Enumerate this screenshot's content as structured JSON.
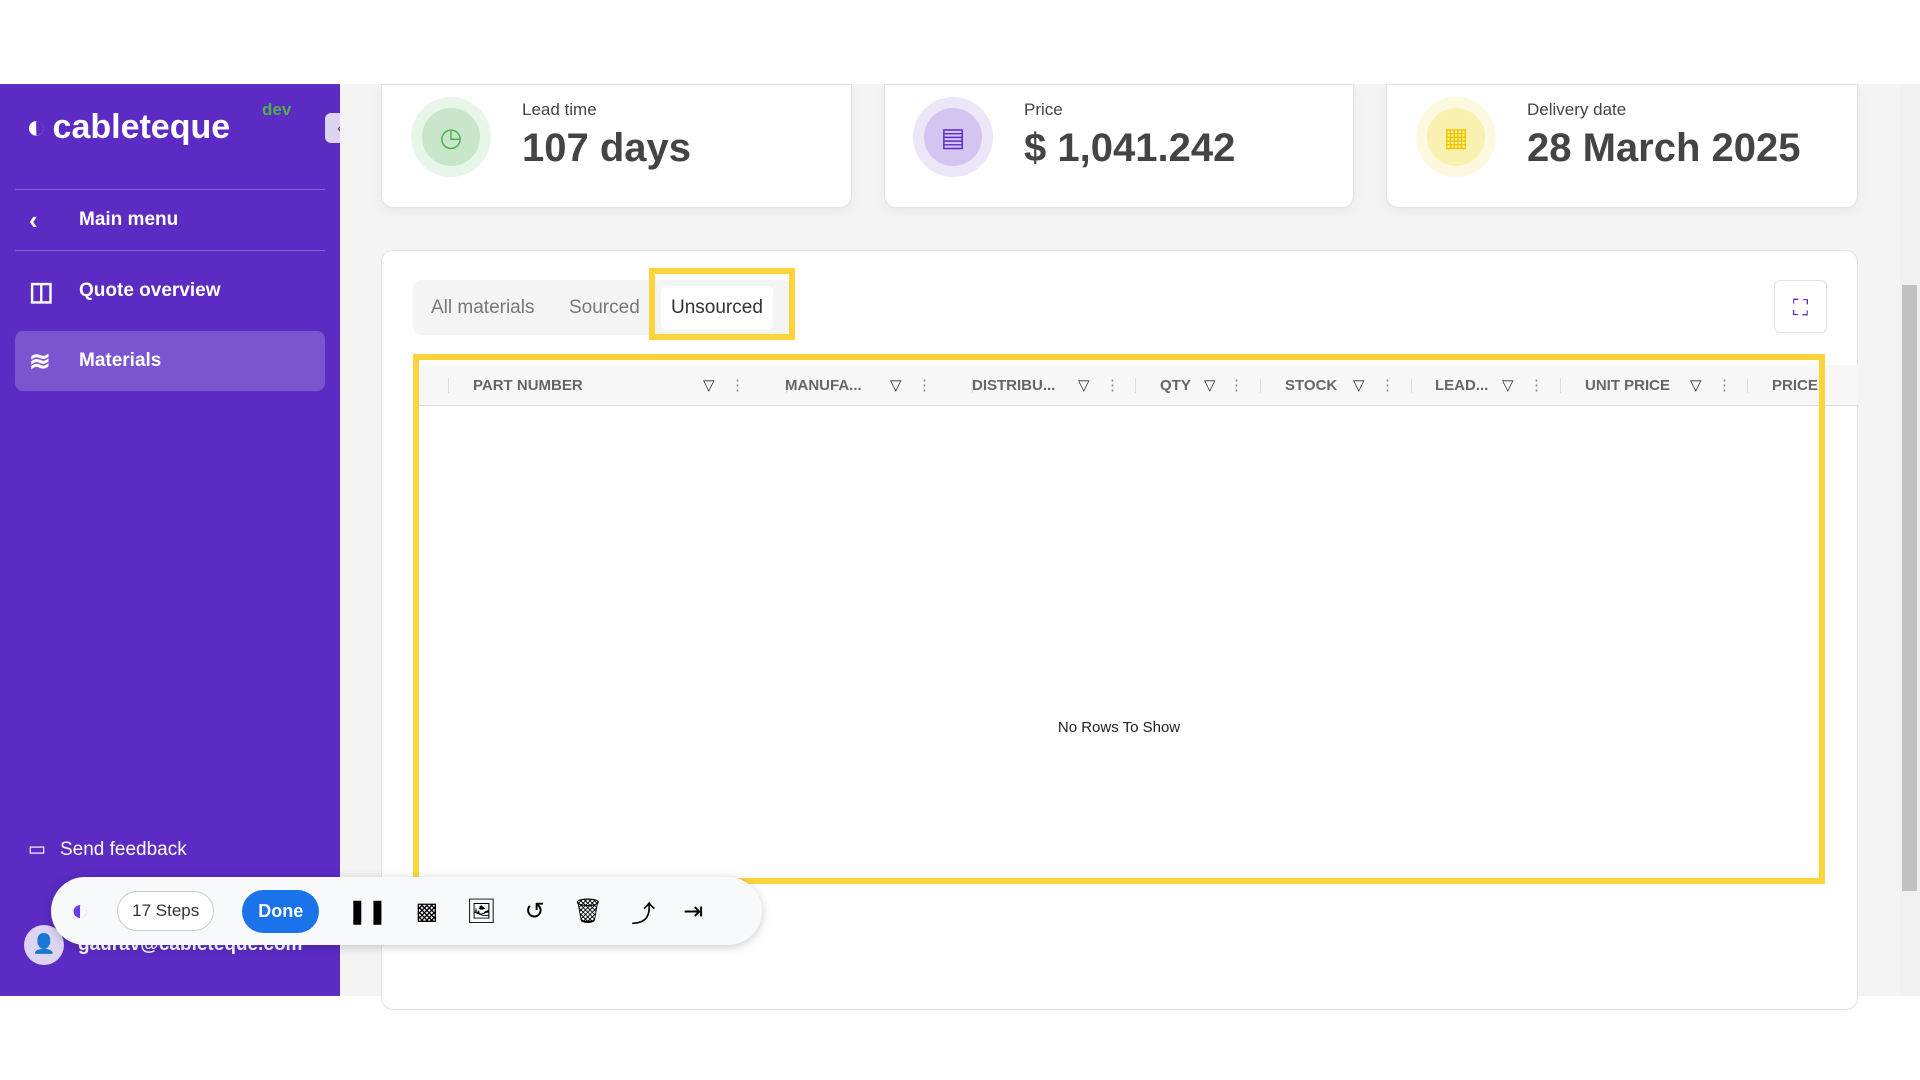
{
  "brand": {
    "name": "cableteque",
    "env": "dev"
  },
  "sidebar": {
    "items": [
      {
        "label": "Main menu",
        "icon": "chevron-left-icon"
      },
      {
        "label": "Quote overview",
        "icon": "columns-icon"
      },
      {
        "label": "Materials",
        "icon": "layers-icon",
        "active": true
      }
    ],
    "feedback": "Send feedback",
    "user": "gaurav@cableteque.com"
  },
  "cards": [
    {
      "label": "Lead time",
      "value": "107 days",
      "icon": "clock-icon",
      "color": "#4caf50"
    },
    {
      "label": "Price",
      "value": "$ 1,041.242",
      "icon": "receipt-icon",
      "color": "#5b2bc4"
    },
    {
      "label": "Delivery date",
      "value": "28 March 2025",
      "icon": "calendar-icon",
      "color": "#f0c800"
    }
  ],
  "tabs": [
    "All materials",
    "Sourced",
    "Unsourced"
  ],
  "selected_tab": "Unsourced",
  "grid": {
    "columns": [
      "PART NUMBER",
      "MANUFA...",
      "DISTRIBU...",
      "QTY",
      "STOCK",
      "LEAD...",
      "UNIT PRICE",
      "PRICE"
    ],
    "empty": "No Rows To Show"
  },
  "toolbar": {
    "steps": "17 Steps",
    "done": "Done"
  },
  "colors": {
    "sidebar": "#5b2bc4",
    "highlight": "#ffd43b",
    "done": "#1a73e8"
  }
}
